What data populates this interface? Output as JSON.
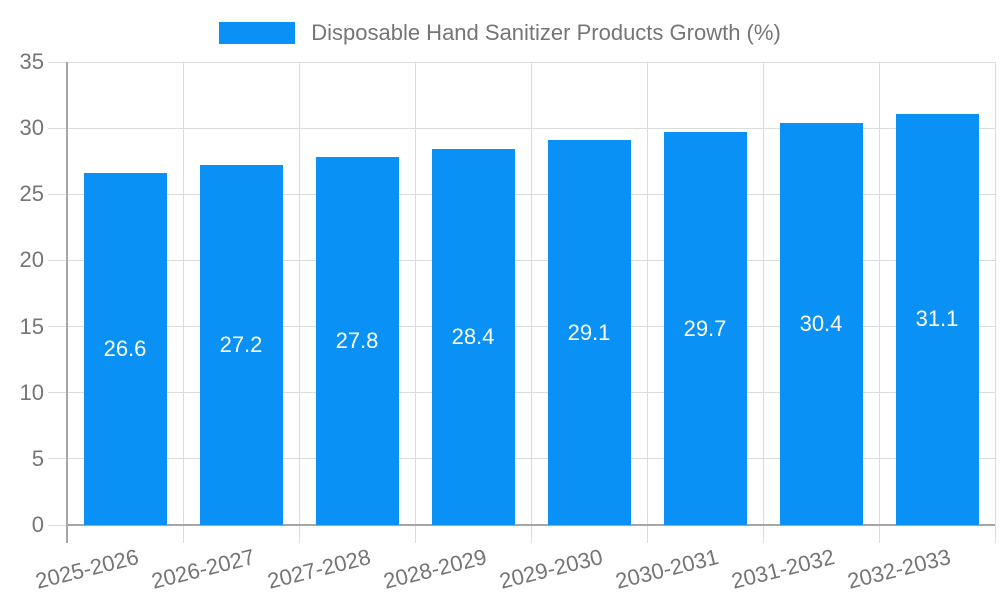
{
  "chart_data": {
    "type": "bar",
    "title": "Disposable Hand Sanitizer Products Growth (%)",
    "categories": [
      "2025-2026",
      "2026-2027",
      "2027-2028",
      "2028-2029",
      "2029-2030",
      "2030-2031",
      "2031-2032",
      "2032-2033"
    ],
    "values": [
      26.6,
      27.2,
      27.8,
      28.4,
      29.1,
      29.7,
      30.4,
      31.1
    ],
    "value_labels": [
      "26.6",
      "27.2",
      "27.8",
      "28.4",
      "29.1",
      "29.7",
      "30.4",
      "31.1"
    ],
    "xlabel": "",
    "ylabel": "",
    "ylim": [
      0,
      35
    ],
    "yticks": [
      0,
      5,
      10,
      15,
      20,
      25,
      30,
      35
    ],
    "ytick_labels": [
      "0",
      "5",
      "10",
      "15",
      "20",
      "25",
      "30",
      "35"
    ],
    "grid": true,
    "legend_position": "top",
    "colors": {
      "bar": "#0991f5",
      "bar_label_text": "#ffffff",
      "axis_text": "#757575",
      "grid_line": "#dcdcdc",
      "axis_line": "#a6a6a6",
      "background": "#ffffff"
    }
  }
}
